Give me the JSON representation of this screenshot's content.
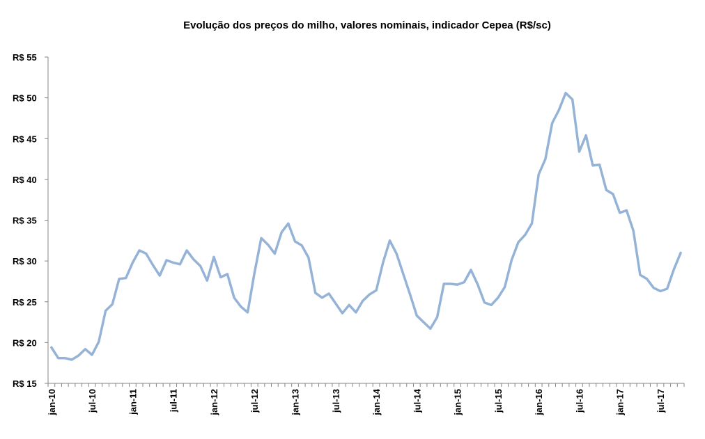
{
  "chart_data": {
    "type": "line",
    "title": "Evolução dos preços do milho, valores nominais, indicador Cepea (R$/sc)",
    "xlabel": "",
    "ylabel": "",
    "ylim": [
      15,
      55
    ],
    "y_ticks": [
      15,
      20,
      25,
      30,
      35,
      40,
      45,
      50,
      55
    ],
    "y_tick_labels": [
      "R$ 15",
      "R$ 20",
      "R$ 25",
      "R$ 30",
      "R$ 35",
      "R$ 40",
      "R$ 45",
      "R$ 50",
      "R$ 55"
    ],
    "x_tick_labels": [
      "jan-10",
      "jul-10",
      "jan-11",
      "jul-11",
      "jan-12",
      "jul-12",
      "jan-13",
      "jul-13",
      "jan-14",
      "jul-14",
      "jan-15",
      "jul-15",
      "jan-16",
      "jul-16",
      "jan-17",
      "jul-17"
    ],
    "x_start": "jan-10",
    "x_end": "ago-17",
    "grid": false,
    "legend": "none",
    "line_color": "#95B3D7",
    "series": [
      {
        "values": [
          19.4,
          18.1,
          18.1,
          17.9,
          18.4,
          19.2,
          18.5,
          20.1,
          23.9,
          24.7,
          27.8,
          27.9,
          29.8,
          31.3,
          30.9,
          29.5,
          28.2,
          30.1,
          29.8,
          29.6,
          31.3,
          30.2,
          29.4,
          27.6,
          30.5,
          28.0,
          28.4,
          25.5,
          24.4,
          23.7,
          28.5,
          32.8,
          32.0,
          30.9,
          33.5,
          34.6,
          32.4,
          31.9,
          30.4,
          26.1,
          25.5,
          26.0,
          24.8,
          23.6,
          24.6,
          23.7,
          25.1,
          25.9,
          26.4,
          29.8,
          32.5,
          30.9,
          28.4,
          25.9,
          23.3,
          22.5,
          21.7,
          23.1,
          27.2,
          27.2,
          27.1,
          27.4,
          28.9,
          27.1,
          24.9,
          24.6,
          25.5,
          26.8,
          30.1,
          32.3,
          33.2,
          34.6,
          40.6,
          42.5,
          46.9,
          48.5,
          50.6,
          49.8,
          43.4,
          45.4,
          41.7,
          41.8,
          38.7,
          38.2,
          35.9,
          36.2,
          33.7,
          28.3,
          27.8,
          26.7,
          26.3,
          26.6,
          29.0,
          31.0
        ]
      }
    ]
  }
}
